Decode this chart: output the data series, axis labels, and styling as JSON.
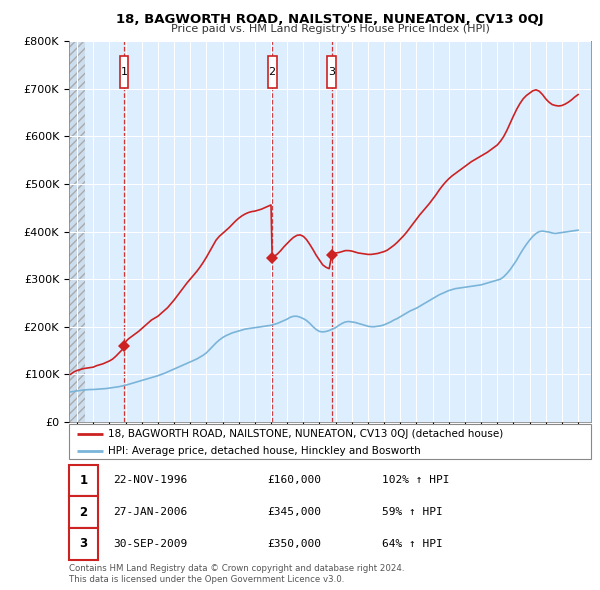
{
  "title": "18, BAGWORTH ROAD, NAILSTONE, NUNEATON, CV13 0QJ",
  "subtitle": "Price paid vs. HM Land Registry's House Price Index (HPI)",
  "legend_line1": "18, BAGWORTH ROAD, NAILSTONE, NUNEATON, CV13 0QJ (detached house)",
  "legend_line2": "HPI: Average price, detached house, Hinckley and Bosworth",
  "footer1": "Contains HM Land Registry data © Crown copyright and database right 2024.",
  "footer2": "This data is licensed under the Open Government Licence v3.0.",
  "sale_labels": [
    {
      "n": "1",
      "date": "22-NOV-1996",
      "price": "£160,000",
      "hpi": "102% ↑ HPI",
      "x_year": 1996.9
    },
    {
      "n": "2",
      "date": "27-JAN-2006",
      "price": "£345,000",
      "hpi": "59% ↑ HPI",
      "x_year": 2006.07
    },
    {
      "n": "3",
      "date": "30-SEP-2009",
      "price": "£350,000",
      "hpi": "64% ↑ HPI",
      "x_year": 2009.75
    }
  ],
  "vline_x": [
    1996.9,
    2006.07,
    2009.75
  ],
  "sale_points_red": [
    [
      1996.9,
      160000
    ],
    [
      2006.07,
      345000
    ],
    [
      2009.75,
      350000
    ]
  ],
  "ylim": [
    0,
    800000
  ],
  "yticks": [
    0,
    100000,
    200000,
    300000,
    400000,
    500000,
    600000,
    700000,
    800000
  ],
  "ytick_labels": [
    "£0",
    "£100K",
    "£200K",
    "£300K",
    "£400K",
    "£500K",
    "£600K",
    "£700K",
    "£800K"
  ],
  "hpi_color": "#7ab4d8",
  "price_color": "#cc2222",
  "vline_color": "#cc2222",
  "bg_color": "#ddeeff",
  "xlim_start": 1993.5,
  "xlim_end": 2025.8,
  "hpi_data": [
    [
      1993.6,
      63000
    ],
    [
      1993.8,
      64000
    ],
    [
      1994.0,
      65000
    ],
    [
      1994.2,
      66000
    ],
    [
      1994.4,
      67000
    ],
    [
      1994.6,
      67500
    ],
    [
      1994.8,
      68000
    ],
    [
      1995.0,
      68000
    ],
    [
      1995.2,
      68500
    ],
    [
      1995.4,
      69000
    ],
    [
      1995.6,
      69500
    ],
    [
      1995.8,
      70000
    ],
    [
      1996.0,
      71000
    ],
    [
      1996.2,
      72000
    ],
    [
      1996.4,
      73000
    ],
    [
      1996.6,
      74000
    ],
    [
      1996.8,
      75500
    ],
    [
      1997.0,
      77000
    ],
    [
      1997.2,
      79000
    ],
    [
      1997.4,
      81000
    ],
    [
      1997.6,
      83000
    ],
    [
      1997.8,
      85000
    ],
    [
      1998.0,
      87000
    ],
    [
      1998.2,
      89000
    ],
    [
      1998.4,
      91000
    ],
    [
      1998.6,
      93000
    ],
    [
      1998.8,
      95000
    ],
    [
      1999.0,
      97000
    ],
    [
      1999.2,
      99500
    ],
    [
      1999.4,
      102000
    ],
    [
      1999.6,
      105000
    ],
    [
      1999.8,
      108000
    ],
    [
      2000.0,
      111000
    ],
    [
      2000.2,
      114000
    ],
    [
      2000.4,
      117000
    ],
    [
      2000.6,
      120000
    ],
    [
      2000.8,
      123000
    ],
    [
      2001.0,
      126000
    ],
    [
      2001.2,
      129000
    ],
    [
      2001.4,
      132000
    ],
    [
      2001.6,
      136000
    ],
    [
      2001.8,
      140000
    ],
    [
      2002.0,
      145000
    ],
    [
      2002.2,
      152000
    ],
    [
      2002.4,
      159000
    ],
    [
      2002.6,
      166000
    ],
    [
      2002.8,
      172000
    ],
    [
      2003.0,
      177000
    ],
    [
      2003.2,
      181000
    ],
    [
      2003.4,
      184000
    ],
    [
      2003.6,
      187000
    ],
    [
      2003.8,
      189000
    ],
    [
      2004.0,
      191000
    ],
    [
      2004.2,
      193000
    ],
    [
      2004.4,
      195000
    ],
    [
      2004.6,
      196000
    ],
    [
      2004.8,
      197000
    ],
    [
      2005.0,
      198000
    ],
    [
      2005.2,
      199000
    ],
    [
      2005.4,
      200000
    ],
    [
      2005.6,
      201000
    ],
    [
      2005.8,
      202000
    ],
    [
      2006.0,
      203000
    ],
    [
      2006.2,
      205000
    ],
    [
      2006.4,
      207000
    ],
    [
      2006.6,
      210000
    ],
    [
      2006.8,
      213000
    ],
    [
      2007.0,
      216000
    ],
    [
      2007.2,
      220000
    ],
    [
      2007.4,
      222000
    ],
    [
      2007.6,
      222000
    ],
    [
      2007.8,
      220000
    ],
    [
      2008.0,
      217000
    ],
    [
      2008.2,
      213000
    ],
    [
      2008.4,
      207000
    ],
    [
      2008.6,
      200000
    ],
    [
      2008.8,
      194000
    ],
    [
      2009.0,
      190000
    ],
    [
      2009.2,
      189000
    ],
    [
      2009.4,
      190000
    ],
    [
      2009.6,
      192000
    ],
    [
      2009.8,
      195000
    ],
    [
      2010.0,
      198000
    ],
    [
      2010.2,
      203000
    ],
    [
      2010.4,
      207000
    ],
    [
      2010.6,
      210000
    ],
    [
      2010.8,
      211000
    ],
    [
      2011.0,
      210000
    ],
    [
      2011.2,
      209000
    ],
    [
      2011.4,
      207000
    ],
    [
      2011.6,
      205000
    ],
    [
      2011.8,
      203000
    ],
    [
      2012.0,
      201000
    ],
    [
      2012.2,
      200000
    ],
    [
      2012.4,
      200000
    ],
    [
      2012.6,
      201000
    ],
    [
      2012.8,
      202000
    ],
    [
      2013.0,
      204000
    ],
    [
      2013.2,
      207000
    ],
    [
      2013.4,
      210000
    ],
    [
      2013.6,
      214000
    ],
    [
      2013.8,
      217000
    ],
    [
      2014.0,
      221000
    ],
    [
      2014.2,
      225000
    ],
    [
      2014.4,
      229000
    ],
    [
      2014.6,
      233000
    ],
    [
      2014.8,
      236000
    ],
    [
      2015.0,
      239000
    ],
    [
      2015.2,
      243000
    ],
    [
      2015.4,
      247000
    ],
    [
      2015.6,
      251000
    ],
    [
      2015.8,
      255000
    ],
    [
      2016.0,
      259000
    ],
    [
      2016.2,
      263000
    ],
    [
      2016.4,
      267000
    ],
    [
      2016.6,
      270000
    ],
    [
      2016.8,
      273000
    ],
    [
      2017.0,
      276000
    ],
    [
      2017.2,
      278000
    ],
    [
      2017.4,
      280000
    ],
    [
      2017.6,
      281000
    ],
    [
      2017.8,
      282000
    ],
    [
      2018.0,
      283000
    ],
    [
      2018.2,
      284000
    ],
    [
      2018.4,
      285000
    ],
    [
      2018.6,
      286000
    ],
    [
      2018.8,
      287000
    ],
    [
      2019.0,
      288000
    ],
    [
      2019.2,
      290000
    ],
    [
      2019.4,
      292000
    ],
    [
      2019.6,
      294000
    ],
    [
      2019.8,
      296000
    ],
    [
      2020.0,
      298000
    ],
    [
      2020.2,
      300000
    ],
    [
      2020.4,
      305000
    ],
    [
      2020.6,
      312000
    ],
    [
      2020.8,
      320000
    ],
    [
      2021.0,
      330000
    ],
    [
      2021.2,
      340000
    ],
    [
      2021.4,
      352000
    ],
    [
      2021.6,
      363000
    ],
    [
      2021.8,
      373000
    ],
    [
      2022.0,
      382000
    ],
    [
      2022.2,
      390000
    ],
    [
      2022.4,
      396000
    ],
    [
      2022.6,
      400000
    ],
    [
      2022.8,
      401000
    ],
    [
      2023.0,
      400000
    ],
    [
      2023.2,
      399000
    ],
    [
      2023.4,
      397000
    ],
    [
      2023.6,
      396000
    ],
    [
      2023.8,
      397000
    ],
    [
      2024.0,
      398000
    ],
    [
      2024.2,
      399000
    ],
    [
      2024.4,
      400000
    ],
    [
      2024.6,
      401000
    ],
    [
      2024.8,
      402000
    ],
    [
      2025.0,
      403000
    ]
  ],
  "price_data": [
    [
      1993.6,
      100000
    ],
    [
      1993.8,
      105000
    ],
    [
      1994.0,
      108000
    ],
    [
      1994.2,
      110000
    ],
    [
      1994.4,
      112000
    ],
    [
      1994.6,
      113000
    ],
    [
      1994.8,
      114000
    ],
    [
      1995.0,
      115000
    ],
    [
      1995.2,
      118000
    ],
    [
      1995.4,
      120000
    ],
    [
      1995.6,
      122000
    ],
    [
      1995.8,
      125000
    ],
    [
      1996.0,
      128000
    ],
    [
      1996.2,
      132000
    ],
    [
      1996.4,
      138000
    ],
    [
      1996.6,
      145000
    ],
    [
      1996.8,
      152000
    ],
    [
      1996.9,
      160000
    ],
    [
      1997.0,
      168000
    ],
    [
      1997.1,
      172000
    ],
    [
      1997.2,
      175000
    ],
    [
      1997.4,
      180000
    ],
    [
      1997.6,
      185000
    ],
    [
      1997.8,
      190000
    ],
    [
      1998.0,
      196000
    ],
    [
      1998.2,
      202000
    ],
    [
      1998.4,
      208000
    ],
    [
      1998.6,
      214000
    ],
    [
      1998.8,
      218000
    ],
    [
      1999.0,
      222000
    ],
    [
      1999.2,
      228000
    ],
    [
      1999.4,
      234000
    ],
    [
      1999.6,
      240000
    ],
    [
      1999.8,
      248000
    ],
    [
      2000.0,
      256000
    ],
    [
      2000.2,
      265000
    ],
    [
      2000.4,
      274000
    ],
    [
      2000.6,
      283000
    ],
    [
      2000.8,
      292000
    ],
    [
      2001.0,
      300000
    ],
    [
      2001.2,
      308000
    ],
    [
      2001.4,
      316000
    ],
    [
      2001.6,
      325000
    ],
    [
      2001.8,
      335000
    ],
    [
      2002.0,
      346000
    ],
    [
      2002.2,
      358000
    ],
    [
      2002.4,
      370000
    ],
    [
      2002.6,
      382000
    ],
    [
      2002.8,
      390000
    ],
    [
      2003.0,
      396000
    ],
    [
      2003.2,
      402000
    ],
    [
      2003.4,
      408000
    ],
    [
      2003.6,
      415000
    ],
    [
      2003.8,
      422000
    ],
    [
      2004.0,
      428000
    ],
    [
      2004.2,
      433000
    ],
    [
      2004.4,
      437000
    ],
    [
      2004.6,
      440000
    ],
    [
      2004.8,
      442000
    ],
    [
      2005.0,
      443000
    ],
    [
      2005.2,
      445000
    ],
    [
      2005.4,
      447000
    ],
    [
      2005.6,
      450000
    ],
    [
      2005.8,
      453000
    ],
    [
      2006.0,
      456000
    ],
    [
      2006.07,
      345000
    ],
    [
      2006.2,
      348000
    ],
    [
      2006.4,
      353000
    ],
    [
      2006.6,
      360000
    ],
    [
      2006.8,
      368000
    ],
    [
      2007.0,
      375000
    ],
    [
      2007.2,
      382000
    ],
    [
      2007.4,
      388000
    ],
    [
      2007.6,
      392000
    ],
    [
      2007.8,
      393000
    ],
    [
      2008.0,
      390000
    ],
    [
      2008.2,
      383000
    ],
    [
      2008.4,
      373000
    ],
    [
      2008.6,
      362000
    ],
    [
      2008.8,
      350000
    ],
    [
      2009.0,
      340000
    ],
    [
      2009.2,
      330000
    ],
    [
      2009.4,
      325000
    ],
    [
      2009.6,
      322000
    ],
    [
      2009.75,
      350000
    ],
    [
      2009.8,
      352000
    ],
    [
      2010.0,
      355000
    ],
    [
      2010.2,
      356000
    ],
    [
      2010.4,
      358000
    ],
    [
      2010.6,
      360000
    ],
    [
      2010.8,
      360000
    ],
    [
      2011.0,
      359000
    ],
    [
      2011.2,
      357000
    ],
    [
      2011.4,
      355000
    ],
    [
      2011.6,
      354000
    ],
    [
      2011.8,
      353000
    ],
    [
      2012.0,
      352000
    ],
    [
      2012.2,
      352000
    ],
    [
      2012.4,
      353000
    ],
    [
      2012.6,
      354000
    ],
    [
      2012.8,
      356000
    ],
    [
      2013.0,
      358000
    ],
    [
      2013.2,
      361000
    ],
    [
      2013.4,
      366000
    ],
    [
      2013.6,
      371000
    ],
    [
      2013.8,
      377000
    ],
    [
      2014.0,
      384000
    ],
    [
      2014.2,
      391000
    ],
    [
      2014.4,
      399000
    ],
    [
      2014.6,
      408000
    ],
    [
      2014.8,
      417000
    ],
    [
      2015.0,
      426000
    ],
    [
      2015.2,
      435000
    ],
    [
      2015.4,
      443000
    ],
    [
      2015.6,
      451000
    ],
    [
      2015.8,
      459000
    ],
    [
      2016.0,
      468000
    ],
    [
      2016.2,
      477000
    ],
    [
      2016.4,
      487000
    ],
    [
      2016.6,
      496000
    ],
    [
      2016.8,
      504000
    ],
    [
      2017.0,
      511000
    ],
    [
      2017.2,
      517000
    ],
    [
      2017.4,
      522000
    ],
    [
      2017.6,
      527000
    ],
    [
      2017.8,
      532000
    ],
    [
      2018.0,
      537000
    ],
    [
      2018.2,
      542000
    ],
    [
      2018.4,
      547000
    ],
    [
      2018.6,
      551000
    ],
    [
      2018.8,
      555000
    ],
    [
      2019.0,
      559000
    ],
    [
      2019.2,
      563000
    ],
    [
      2019.4,
      567000
    ],
    [
      2019.6,
      572000
    ],
    [
      2019.8,
      577000
    ],
    [
      2020.0,
      582000
    ],
    [
      2020.2,
      590000
    ],
    [
      2020.4,
      600000
    ],
    [
      2020.6,
      613000
    ],
    [
      2020.8,
      628000
    ],
    [
      2021.0,
      643000
    ],
    [
      2021.2,
      657000
    ],
    [
      2021.4,
      669000
    ],
    [
      2021.6,
      679000
    ],
    [
      2021.8,
      686000
    ],
    [
      2022.0,
      691000
    ],
    [
      2022.2,
      696000
    ],
    [
      2022.4,
      698000
    ],
    [
      2022.6,
      695000
    ],
    [
      2022.8,
      688000
    ],
    [
      2023.0,
      679000
    ],
    [
      2023.2,
      672000
    ],
    [
      2023.4,
      667000
    ],
    [
      2023.6,
      665000
    ],
    [
      2023.8,
      664000
    ],
    [
      2024.0,
      665000
    ],
    [
      2024.2,
      668000
    ],
    [
      2024.4,
      672000
    ],
    [
      2024.6,
      677000
    ],
    [
      2024.8,
      683000
    ],
    [
      2025.0,
      688000
    ]
  ]
}
